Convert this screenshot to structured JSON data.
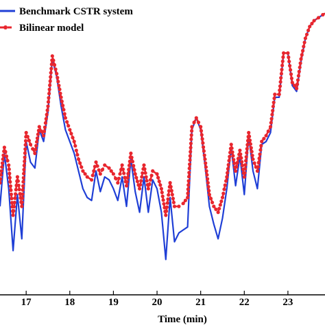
{
  "chart_data": {
    "type": "line",
    "title": "",
    "xlabel": "Time (min)",
    "ylabel": "",
    "xlim": [
      16.4,
      23.85
    ],
    "ylim": [
      0,
      100
    ],
    "x_ticks": [
      17,
      18,
      19,
      20,
      21,
      22,
      23
    ],
    "x_tick_labels": [
      "17",
      "18",
      "19",
      "20",
      "21",
      "22",
      "23"
    ],
    "grid": false,
    "legend_position": "top-left",
    "series": [
      {
        "name": "Benchmark CSTR system",
        "color": "#1f3fd6",
        "line_style": "solid",
        "x": [
          16.4,
          16.5,
          16.6,
          16.7,
          16.8,
          16.9,
          17.0,
          17.1,
          17.2,
          17.3,
          17.4,
          17.5,
          17.6,
          17.7,
          17.8,
          17.9,
          18.0,
          18.1,
          18.2,
          18.3,
          18.4,
          18.5,
          18.6,
          18.7,
          18.8,
          18.9,
          19.0,
          19.1,
          19.2,
          19.3,
          19.4,
          19.5,
          19.6,
          19.7,
          19.8,
          19.9,
          20.0,
          20.1,
          20.2,
          20.3,
          20.4,
          20.5,
          20.6,
          20.7,
          20.8,
          20.9,
          21.0,
          21.1,
          21.2,
          21.3,
          21.4,
          21.5,
          21.6,
          21.7,
          21.8,
          21.9,
          22.0,
          22.1,
          22.2,
          22.3,
          22.4,
          22.5,
          22.6,
          22.7,
          22.8,
          22.9,
          23.0,
          23.1,
          23.2,
          23.3,
          23.4,
          23.5,
          23.6,
          23.7,
          23.8,
          23.85
        ],
        "values": [
          30.0,
          48.0,
          36.0,
          15.0,
          34.0,
          19.0,
          52.0,
          45.0,
          43.0,
          56.0,
          52.0,
          62.0,
          80.0,
          74.0,
          64.0,
          56.0,
          52.0,
          48.0,
          42.0,
          36.0,
          33.0,
          32.0,
          42.0,
          35.0,
          40.0,
          39.0,
          36.0,
          32.0,
          40.0,
          30.0,
          46.0,
          35.0,
          28.0,
          40.0,
          28.0,
          39.0,
          36.0,
          28.0,
          12.0,
          33.0,
          18.0,
          21.0,
          22.0,
          23.0,
          56.0,
          60.0,
          56.0,
          44.0,
          30.0,
          24.0,
          19.0,
          26.0,
          36.0,
          50.0,
          37.0,
          47.0,
          34.0,
          54.0,
          42.0,
          36.0,
          51.0,
          52.0,
          55.0,
          67.0,
          67.0,
          82.0,
          82.0,
          71.0,
          69.0,
          79.0,
          87.0,
          91.0,
          93.0,
          94.0,
          95.0,
          95.5
        ]
      },
      {
        "name": "Bilinear model",
        "color": "#e8262e",
        "line_style": "dashed-dotted",
        "x": [
          16.4,
          16.5,
          16.6,
          16.7,
          16.8,
          16.9,
          17.0,
          17.1,
          17.2,
          17.3,
          17.4,
          17.5,
          17.6,
          17.7,
          17.8,
          17.9,
          18.0,
          18.1,
          18.2,
          18.3,
          18.4,
          18.5,
          18.6,
          18.7,
          18.8,
          18.9,
          19.0,
          19.1,
          19.2,
          19.3,
          19.4,
          19.5,
          19.6,
          19.7,
          19.8,
          19.9,
          20.0,
          20.1,
          20.2,
          20.3,
          20.4,
          20.5,
          20.6,
          20.7,
          20.8,
          20.9,
          21.0,
          21.1,
          21.2,
          21.3,
          21.4,
          21.5,
          21.6,
          21.7,
          21.8,
          21.9,
          22.0,
          22.1,
          22.2,
          22.3,
          22.4,
          22.5,
          22.6,
          22.7,
          22.8,
          22.9,
          23.0,
          23.1,
          23.2,
          23.3,
          23.4,
          23.5,
          23.6,
          23.7,
          23.8,
          23.85
        ],
        "values": [
          38.0,
          50.0,
          44.0,
          27.0,
          40.0,
          30.0,
          55.0,
          51.0,
          48.0,
          57.0,
          54.0,
          64.0,
          81.0,
          75.0,
          67.0,
          60.0,
          56.0,
          52.0,
          46.0,
          42.0,
          40.0,
          39.0,
          45.0,
          41.0,
          44.0,
          43.0,
          41.0,
          38.0,
          44.0,
          37.0,
          48.0,
          41.0,
          36.0,
          44.0,
          36.0,
          42.0,
          41.0,
          36.0,
          27.0,
          38.0,
          30.0,
          30.0,
          31.0,
          33.0,
          57.0,
          60.0,
          57.0,
          46.0,
          34.0,
          30.0,
          28.0,
          33.0,
          40.0,
          51.0,
          42.0,
          49.0,
          40.0,
          55.0,
          46.0,
          42.0,
          52.0,
          54.0,
          57.0,
          68.0,
          68.0,
          82.0,
          82.0,
          72.0,
          70.0,
          80.0,
          87.0,
          91.0,
          93.0,
          94.0,
          95.0,
          95.5
        ]
      }
    ]
  }
}
